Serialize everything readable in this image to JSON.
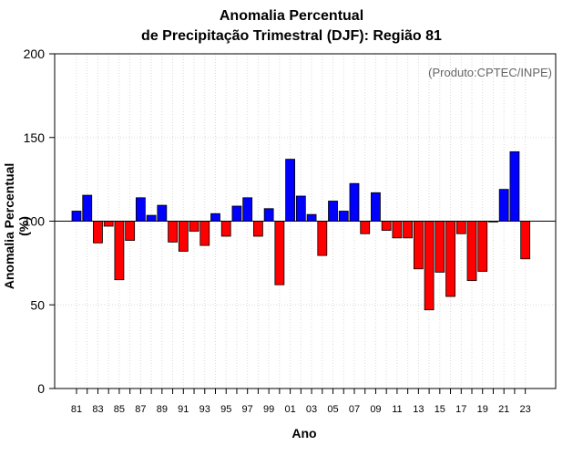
{
  "chart_data": {
    "type": "bar",
    "title_line1": "Anomalia Percentual",
    "title_line2": "de Precipitação Trimestral (DJF): Região 81",
    "product_note": "(Produto:CPTEC/INPE)",
    "xlabel": "Ano",
    "ylabel": "Anomalia Percentual (%)",
    "ylim": [
      0,
      200
    ],
    "yticks": [
      0,
      50,
      100,
      150,
      200
    ],
    "baseline": 100,
    "grid": true,
    "categories": [
      "81",
      "82",
      "83",
      "84",
      "85",
      "86",
      "87",
      "88",
      "89",
      "90",
      "91",
      "92",
      "93",
      "94",
      "95",
      "96",
      "97",
      "98",
      "99",
      "00",
      "01",
      "02",
      "03",
      "04",
      "05",
      "06",
      "07",
      "08",
      "09",
      "10",
      "11",
      "12",
      "13",
      "14",
      "15",
      "16",
      "17",
      "18",
      "19",
      "20",
      "21",
      "22",
      "23"
    ],
    "tick_labels": [
      "81",
      "83",
      "85",
      "87",
      "89",
      "91",
      "93",
      "95",
      "97",
      "99",
      "01",
      "03",
      "05",
      "07",
      "09",
      "11",
      "13",
      "15",
      "17",
      "19",
      "21",
      "23"
    ],
    "values": [
      106,
      115.5,
      87,
      97,
      65,
      88.5,
      114,
      103.5,
      109.5,
      87.5,
      82,
      94,
      85.5,
      104.5,
      91,
      109,
      114,
      91,
      107.5,
      62,
      137,
      115,
      104,
      79.5,
      112,
      106,
      122.5,
      92.5,
      117,
      94.5,
      90,
      90,
      71.5,
      47,
      69.5,
      55,
      92.5,
      64.5,
      70,
      99.5,
      119,
      141.5,
      77.5
    ],
    "colors": {
      "above": "#0000ff",
      "below": "#ff0000",
      "grid": "#d9d9d9",
      "axis": "#000000"
    }
  }
}
